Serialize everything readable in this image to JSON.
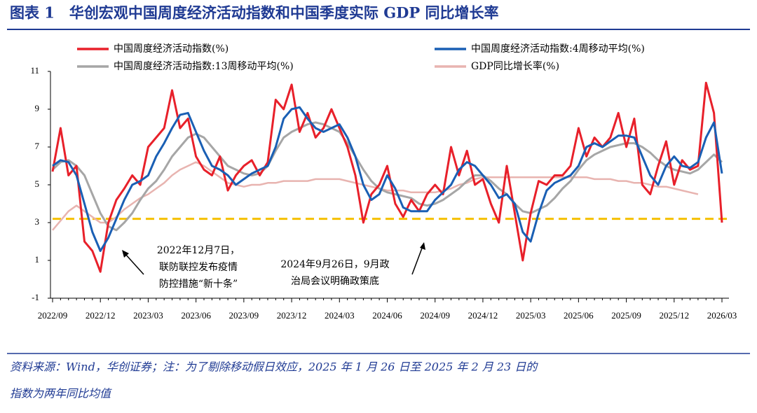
{
  "chart_data": {
    "type": "line",
    "title": "图表 1　华创宏观中国周度经济活动指数和中国季度实际 GDP 同比增长率",
    "categories": [
      "2022/09",
      null,
      null,
      null,
      null,
      null,
      "2022/12",
      null,
      null,
      null,
      null,
      null,
      "2023/03",
      null,
      null,
      null,
      null,
      null,
      "2023/06",
      null,
      null,
      null,
      null,
      null,
      "2023/09",
      null,
      null,
      null,
      null,
      null,
      "2023/12",
      null,
      null,
      null,
      null,
      null,
      "2024/03",
      null,
      null,
      null,
      null,
      null,
      "2024/06",
      null,
      null,
      null,
      null,
      null,
      "2024/09",
      null,
      null,
      null,
      null,
      null,
      "2024/12",
      null,
      null,
      null,
      null,
      null,
      "2025/03",
      null,
      null,
      null,
      null,
      null,
      "2025/06",
      null,
      null,
      null,
      null,
      null,
      "2025/09",
      null,
      null,
      null,
      null,
      null,
      "2025/12",
      null,
      null,
      null,
      null,
      null,
      "2026/03"
    ],
    "series": [
      {
        "name": "中国周度经济活动指数(%)",
        "color": "#e8202a",
        "width": 3,
        "values": [
          5.7,
          8.0,
          5.5,
          6.0,
          2.0,
          1.5,
          0.4,
          3.0,
          4.2,
          4.8,
          5.5,
          5.0,
          7.0,
          7.5,
          8.0,
          10.0,
          8.0,
          8.5,
          6.5,
          5.8,
          5.5,
          6.5,
          4.7,
          5.5,
          6.0,
          6.3,
          5.5,
          6.2,
          9.5,
          9.0,
          10.3,
          7.8,
          8.8,
          7.5,
          8.0,
          9.0,
          8.0,
          7.0,
          5.5,
          3.0,
          4.5,
          5.0,
          6.0,
          4.0,
          3.3,
          4.2,
          3.6,
          4.5,
          5.0,
          4.5,
          7.0,
          5.5,
          6.8,
          5.0,
          5.3,
          4.0,
          3.0,
          6.0,
          3.5,
          1.0,
          3.5,
          5.2,
          5.0,
          5.5,
          5.5,
          6.0,
          8.0,
          6.5,
          7.5,
          7.0,
          7.5,
          8.8,
          7.0,
          8.5,
          5.0,
          4.5,
          6.0,
          7.3,
          5.0,
          6.3,
          5.8,
          6.0,
          10.4,
          8.8,
          3.0
        ]
      },
      {
        "name": "中国周度经济活动指数:4周移动平均(%)",
        "color": "#1a5fb4",
        "width": 3,
        "values": [
          6.0,
          6.3,
          6.2,
          5.5,
          4.0,
          2.5,
          1.5,
          2.2,
          3.2,
          4.2,
          5.0,
          5.2,
          5.5,
          6.5,
          7.2,
          8.0,
          8.7,
          8.8,
          7.8,
          6.8,
          6.0,
          5.8,
          5.5,
          5.0,
          5.3,
          5.6,
          5.8,
          6.0,
          7.0,
          8.5,
          9.0,
          9.1,
          8.5,
          8.0,
          7.8,
          8.0,
          8.2,
          7.5,
          6.5,
          5.0,
          4.2,
          4.5,
          5.5,
          4.8,
          3.8,
          3.6,
          3.6,
          3.6,
          4.2,
          4.6,
          5.0,
          5.8,
          6.2,
          6.0,
          5.5,
          5.0,
          4.3,
          4.5,
          4.0,
          2.5,
          2.0,
          3.5,
          4.7,
          5.1,
          5.3,
          5.5,
          6.0,
          7.0,
          7.2,
          7.0,
          7.3,
          7.6,
          7.6,
          7.5,
          6.5,
          5.5,
          5.0,
          6.0,
          6.5,
          6.0,
          5.9,
          6.2,
          7.5,
          8.3,
          5.6
        ]
      },
      {
        "name": "中国周度经济活动指数:13周移动平均(%)",
        "color": "#a6a6a6",
        "width": 3,
        "values": [
          5.8,
          6.2,
          6.3,
          6.0,
          5.5,
          4.5,
          3.5,
          2.8,
          2.6,
          3.0,
          3.5,
          4.2,
          4.8,
          5.2,
          5.8,
          6.5,
          7.0,
          7.5,
          7.7,
          7.5,
          7.0,
          6.5,
          6.0,
          5.8,
          5.6,
          5.5,
          5.6,
          6.0,
          6.8,
          7.5,
          7.8,
          8.0,
          8.2,
          8.3,
          8.2,
          8.0,
          7.8,
          7.2,
          6.5,
          5.8,
          5.2,
          4.8,
          4.6,
          4.5,
          4.4,
          4.3,
          4.0,
          3.9,
          4.0,
          4.2,
          4.5,
          4.8,
          5.2,
          5.5,
          5.5,
          5.2,
          4.8,
          4.5,
          4.0,
          3.6,
          3.5,
          3.7,
          3.9,
          4.3,
          4.8,
          5.2,
          5.8,
          6.3,
          6.6,
          6.8,
          7.0,
          7.1,
          7.2,
          7.2,
          7.0,
          6.7,
          6.3,
          6.0,
          5.8,
          5.7,
          5.6,
          5.8,
          6.2,
          6.6,
          6.2
        ]
      },
      {
        "name": "GDP同比增长率(%)",
        "color": "#e8b4b0",
        "width": 2.5,
        "values": [
          2.6,
          3.1,
          3.6,
          3.9,
          3.6,
          3.3,
          3.0,
          3.0,
          3.3,
          3.7,
          4.0,
          4.3,
          4.5,
          4.8,
          5.1,
          5.5,
          5.8,
          6.0,
          6.2,
          6.0,
          5.7,
          5.4,
          5.1,
          5.0,
          4.9,
          5.0,
          5.0,
          5.1,
          5.1,
          5.2,
          5.2,
          5.2,
          5.2,
          5.3,
          5.3,
          5.3,
          5.3,
          5.2,
          5.1,
          5.0,
          4.9,
          4.8,
          4.7,
          4.7,
          4.7,
          4.6,
          4.6,
          4.6,
          4.6,
          4.7,
          4.8,
          5.0,
          5.1,
          5.3,
          5.4,
          5.4,
          5.4,
          5.4,
          5.4,
          5.4,
          5.4,
          5.4,
          5.4,
          5.4,
          5.4,
          5.4,
          5.4,
          5.4,
          5.3,
          5.3,
          5.3,
          5.2,
          5.2,
          5.1,
          5.1,
          5.0,
          4.9,
          4.9,
          4.8,
          4.7,
          4.6,
          4.5,
          null,
          null,
          null
        ]
      }
    ],
    "ylim": [
      -1,
      11
    ],
    "yticks": [
      -1,
      1,
      3,
      5,
      7,
      9,
      11
    ],
    "hline": {
      "value": 3.2,
      "color": "#f5c000"
    },
    "annotations": [
      {
        "lines": [
          "2022年12月7日，",
          "联防联控发布疫情",
          "防控措施“新十条”"
        ]
      },
      {
        "lines": [
          "2024年9月26日，9月政",
          "治局会议明确政策底"
        ]
      }
    ],
    "note": [
      "资料来源：Wind，华创证券；注：为了剔除移动假日效应，2025 年 1 月 26 日至 2025 年 2 月 23 日的",
      "指数为两年同比均值"
    ]
  }
}
